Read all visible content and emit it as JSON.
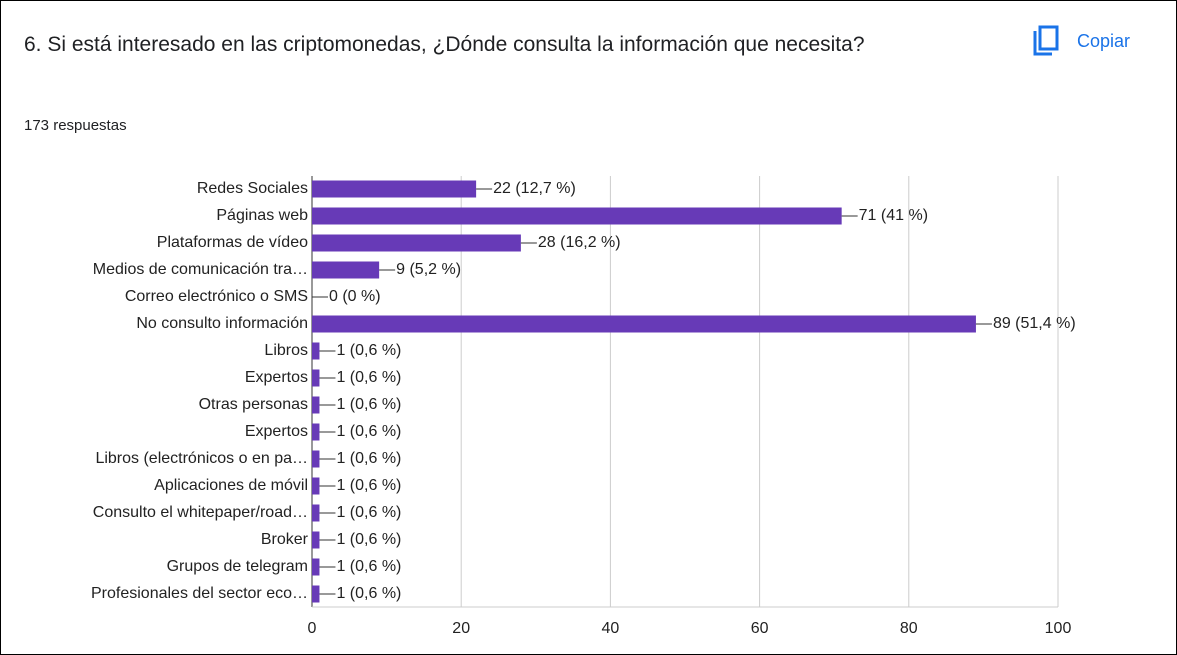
{
  "question": "6. Si está interesado en las criptomonedas, ¿Dónde consulta la información que necesita?",
  "copy_button": "Copiar",
  "responses": "173 respuestas",
  "chart_data": {
    "type": "hbar",
    "color": "#673ab7",
    "categories": [
      "Redes Sociales",
      "Páginas web",
      "Plataformas de vídeo",
      "Medios de comunicación tra…",
      "Correo electrónico o SMS",
      "No consulto información",
      "Libros",
      "Expertos",
      "Otras personas",
      "Expertos",
      "Libros (electrónicos o en pa…",
      "Aplicaciones de móvil",
      "Consulto el whitepaper/road…",
      "Broker",
      "Grupos de telegram",
      "Profesionales del sector eco…"
    ],
    "values": [
      22,
      71,
      28,
      9,
      0,
      89,
      1,
      1,
      1,
      1,
      1,
      1,
      1,
      1,
      1,
      1
    ],
    "value_labels": [
      "22 (12,7 %)",
      "71 (41 %)",
      "28 (16,2 %)",
      "9 (5,2 %)",
      "0 (0 %)",
      "89 (51,4 %)",
      "1 (0,6 %)",
      "1 (0,6 %)",
      "1 (0,6 %)",
      "1 (0,6 %)",
      "1 (0,6 %)",
      "1 (0,6 %)",
      "1 (0,6 %)",
      "1 (0,6 %)",
      "1 (0,6 %)",
      "1 (0,6 %)"
    ],
    "xlim": [
      0,
      100
    ],
    "xticks": [
      0,
      20,
      40,
      60,
      80,
      100
    ],
    "grid": true
  }
}
